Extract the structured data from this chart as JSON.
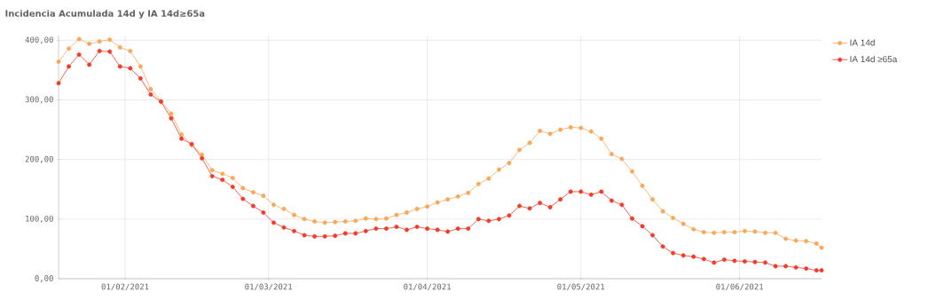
{
  "chart_data": {
    "type": "line",
    "title": "Incidencia Acumulada 14d y IA 14d≥65a",
    "x": [
      "2021-01-19",
      "2021-01-21",
      "2021-01-23",
      "2021-01-25",
      "2021-01-27",
      "2021-01-29",
      "2021-01-31",
      "2021-02-02",
      "2021-02-04",
      "2021-02-06",
      "2021-02-08",
      "2021-02-10",
      "2021-02-12",
      "2021-02-14",
      "2021-02-16",
      "2021-02-18",
      "2021-02-20",
      "2021-02-22",
      "2021-02-24",
      "2021-02-26",
      "2021-02-28",
      "2021-03-02",
      "2021-03-04",
      "2021-03-06",
      "2021-03-08",
      "2021-03-10",
      "2021-03-12",
      "2021-03-14",
      "2021-03-16",
      "2021-03-18",
      "2021-03-20",
      "2021-03-22",
      "2021-03-24",
      "2021-03-26",
      "2021-03-28",
      "2021-03-30",
      "2021-04-01",
      "2021-04-03",
      "2021-04-05",
      "2021-04-07",
      "2021-04-09",
      "2021-04-11",
      "2021-04-13",
      "2021-04-15",
      "2021-04-17",
      "2021-04-19",
      "2021-04-21",
      "2021-04-23",
      "2021-04-25",
      "2021-04-27",
      "2021-04-29",
      "2021-05-01",
      "2021-05-03",
      "2021-05-05",
      "2021-05-07",
      "2021-05-09",
      "2021-05-11",
      "2021-05-13",
      "2021-05-15",
      "2021-05-17",
      "2021-05-19",
      "2021-05-21",
      "2021-05-23",
      "2021-05-25",
      "2021-05-27",
      "2021-05-29",
      "2021-05-31",
      "2021-06-02",
      "2021-06-04",
      "2021-06-06",
      "2021-06-08",
      "2021-06-10",
      "2021-06-12",
      "2021-06-14",
      "2021-06-16",
      "2021-06-17"
    ],
    "series": [
      {
        "name": "IA 14d",
        "color": "#f9a85b",
        "values": [
          364,
          386,
          402,
          394,
          398,
          401,
          388,
          382,
          356,
          318,
          298,
          277,
          242,
          224,
          208,
          182,
          176,
          169,
          152,
          145,
          139,
          124,
          117,
          107,
          100,
          96,
          94,
          95,
          96,
          97,
          101,
          100,
          101,
          107,
          111,
          117,
          121,
          128,
          133,
          138,
          144,
          159,
          168,
          183,
          194,
          216,
          228,
          248,
          243,
          250,
          254,
          253,
          247,
          235,
          209,
          201,
          180,
          156,
          133,
          113,
          102,
          92,
          83,
          78,
          77,
          78,
          78,
          80,
          79,
          77,
          77,
          67,
          64,
          63,
          59,
          52
        ]
      },
      {
        "name": "IA 14d ≥65a",
        "color": "#f23c2b",
        "values": [
          328,
          356,
          376,
          359,
          382,
          381,
          356,
          353,
          336,
          309,
          297,
          269,
          235,
          226,
          202,
          172,
          166,
          154,
          134,
          122,
          111,
          94,
          86,
          80,
          73,
          71,
          71,
          72,
          76,
          76,
          80,
          84,
          84,
          87,
          82,
          87,
          84,
          82,
          79,
          84,
          84,
          100,
          97,
          100,
          106,
          122,
          118,
          127,
          120,
          133,
          146,
          146,
          141,
          146,
          131,
          124,
          101,
          88,
          73,
          54,
          43,
          39,
          37,
          33,
          27,
          32,
          30,
          29,
          28,
          27,
          21,
          21,
          19,
          17,
          14,
          14
        ]
      }
    ],
    "xlim": [
      "2021-01-19",
      "2021-06-17"
    ],
    "xticks": [
      {
        "value": "2021-02-01",
        "label": "01/02/2021"
      },
      {
        "value": "2021-03-01",
        "label": "01/03/2021"
      },
      {
        "value": "2021-04-01",
        "label": "01/04/2021"
      },
      {
        "value": "2021-05-01",
        "label": "01/05/2021"
      },
      {
        "value": "2021-06-01",
        "label": "01/06/2021"
      }
    ],
    "ylim": [
      0,
      408
    ],
    "yticks": [
      {
        "value": 0,
        "label": "0,00"
      },
      {
        "value": 100,
        "label": "100,00"
      },
      {
        "value": 200,
        "label": "200,00"
      },
      {
        "value": 300,
        "label": "300,00"
      },
      {
        "value": 400,
        "label": "400,00"
      }
    ],
    "grid": true,
    "legend": "top right",
    "marker": "circle",
    "line_style": "solid"
  }
}
